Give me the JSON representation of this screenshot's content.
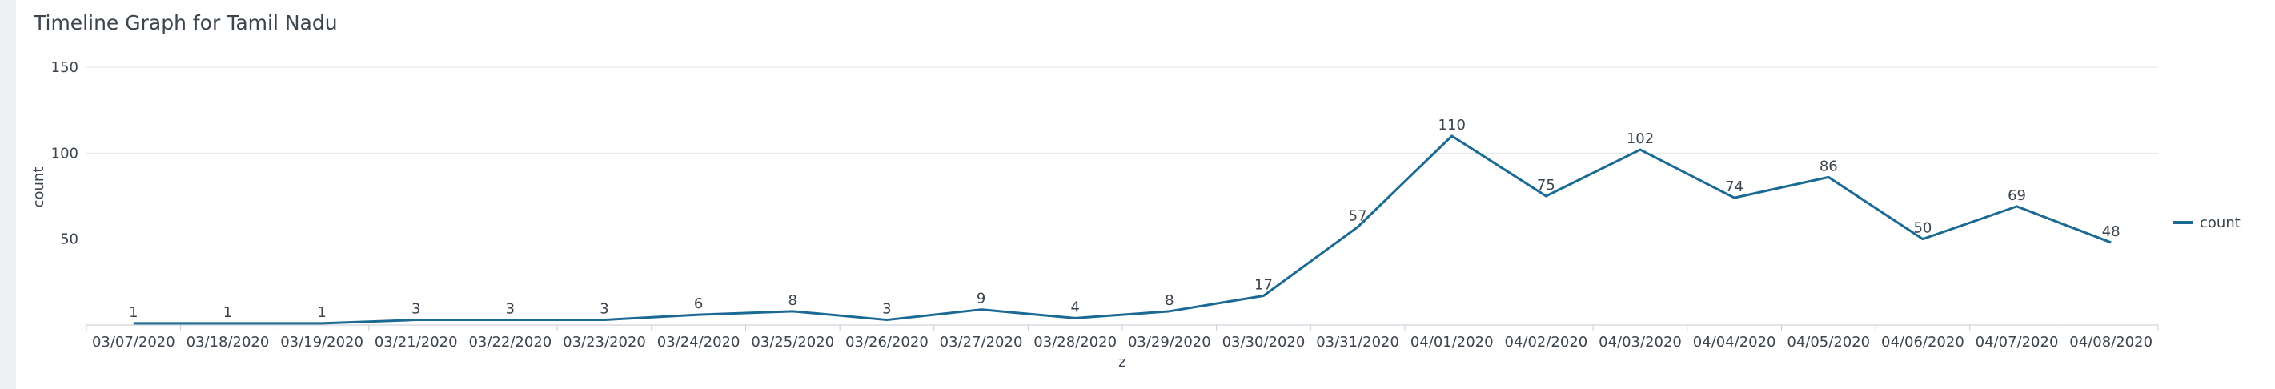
{
  "title": "Timeline Graph for Tamil Nadu",
  "chart_data": {
    "type": "line",
    "categories": [
      "03/07/2020",
      "03/18/2020",
      "03/19/2020",
      "03/21/2020",
      "03/22/2020",
      "03/23/2020",
      "03/24/2020",
      "03/25/2020",
      "03/26/2020",
      "03/27/2020",
      "03/28/2020",
      "03/29/2020",
      "03/30/2020",
      "03/31/2020",
      "04/01/2020",
      "04/02/2020",
      "04/03/2020",
      "04/04/2020",
      "04/05/2020",
      "04/06/2020",
      "04/07/2020",
      "04/08/2020"
    ],
    "series": [
      {
        "name": "count",
        "values": [
          1,
          1,
          1,
          3,
          3,
          3,
          6,
          8,
          3,
          9,
          4,
          8,
          17,
          57,
          110,
          75,
          102,
          74,
          86,
          50,
          69,
          48
        ],
        "color": "#1b6a93"
      }
    ],
    "xlabel": "z",
    "ylabel": "count",
    "ylim": [
      0,
      150
    ],
    "yticks": [
      50,
      100,
      150
    ],
    "grid": true,
    "legend_position": "right",
    "data_labels": true
  }
}
